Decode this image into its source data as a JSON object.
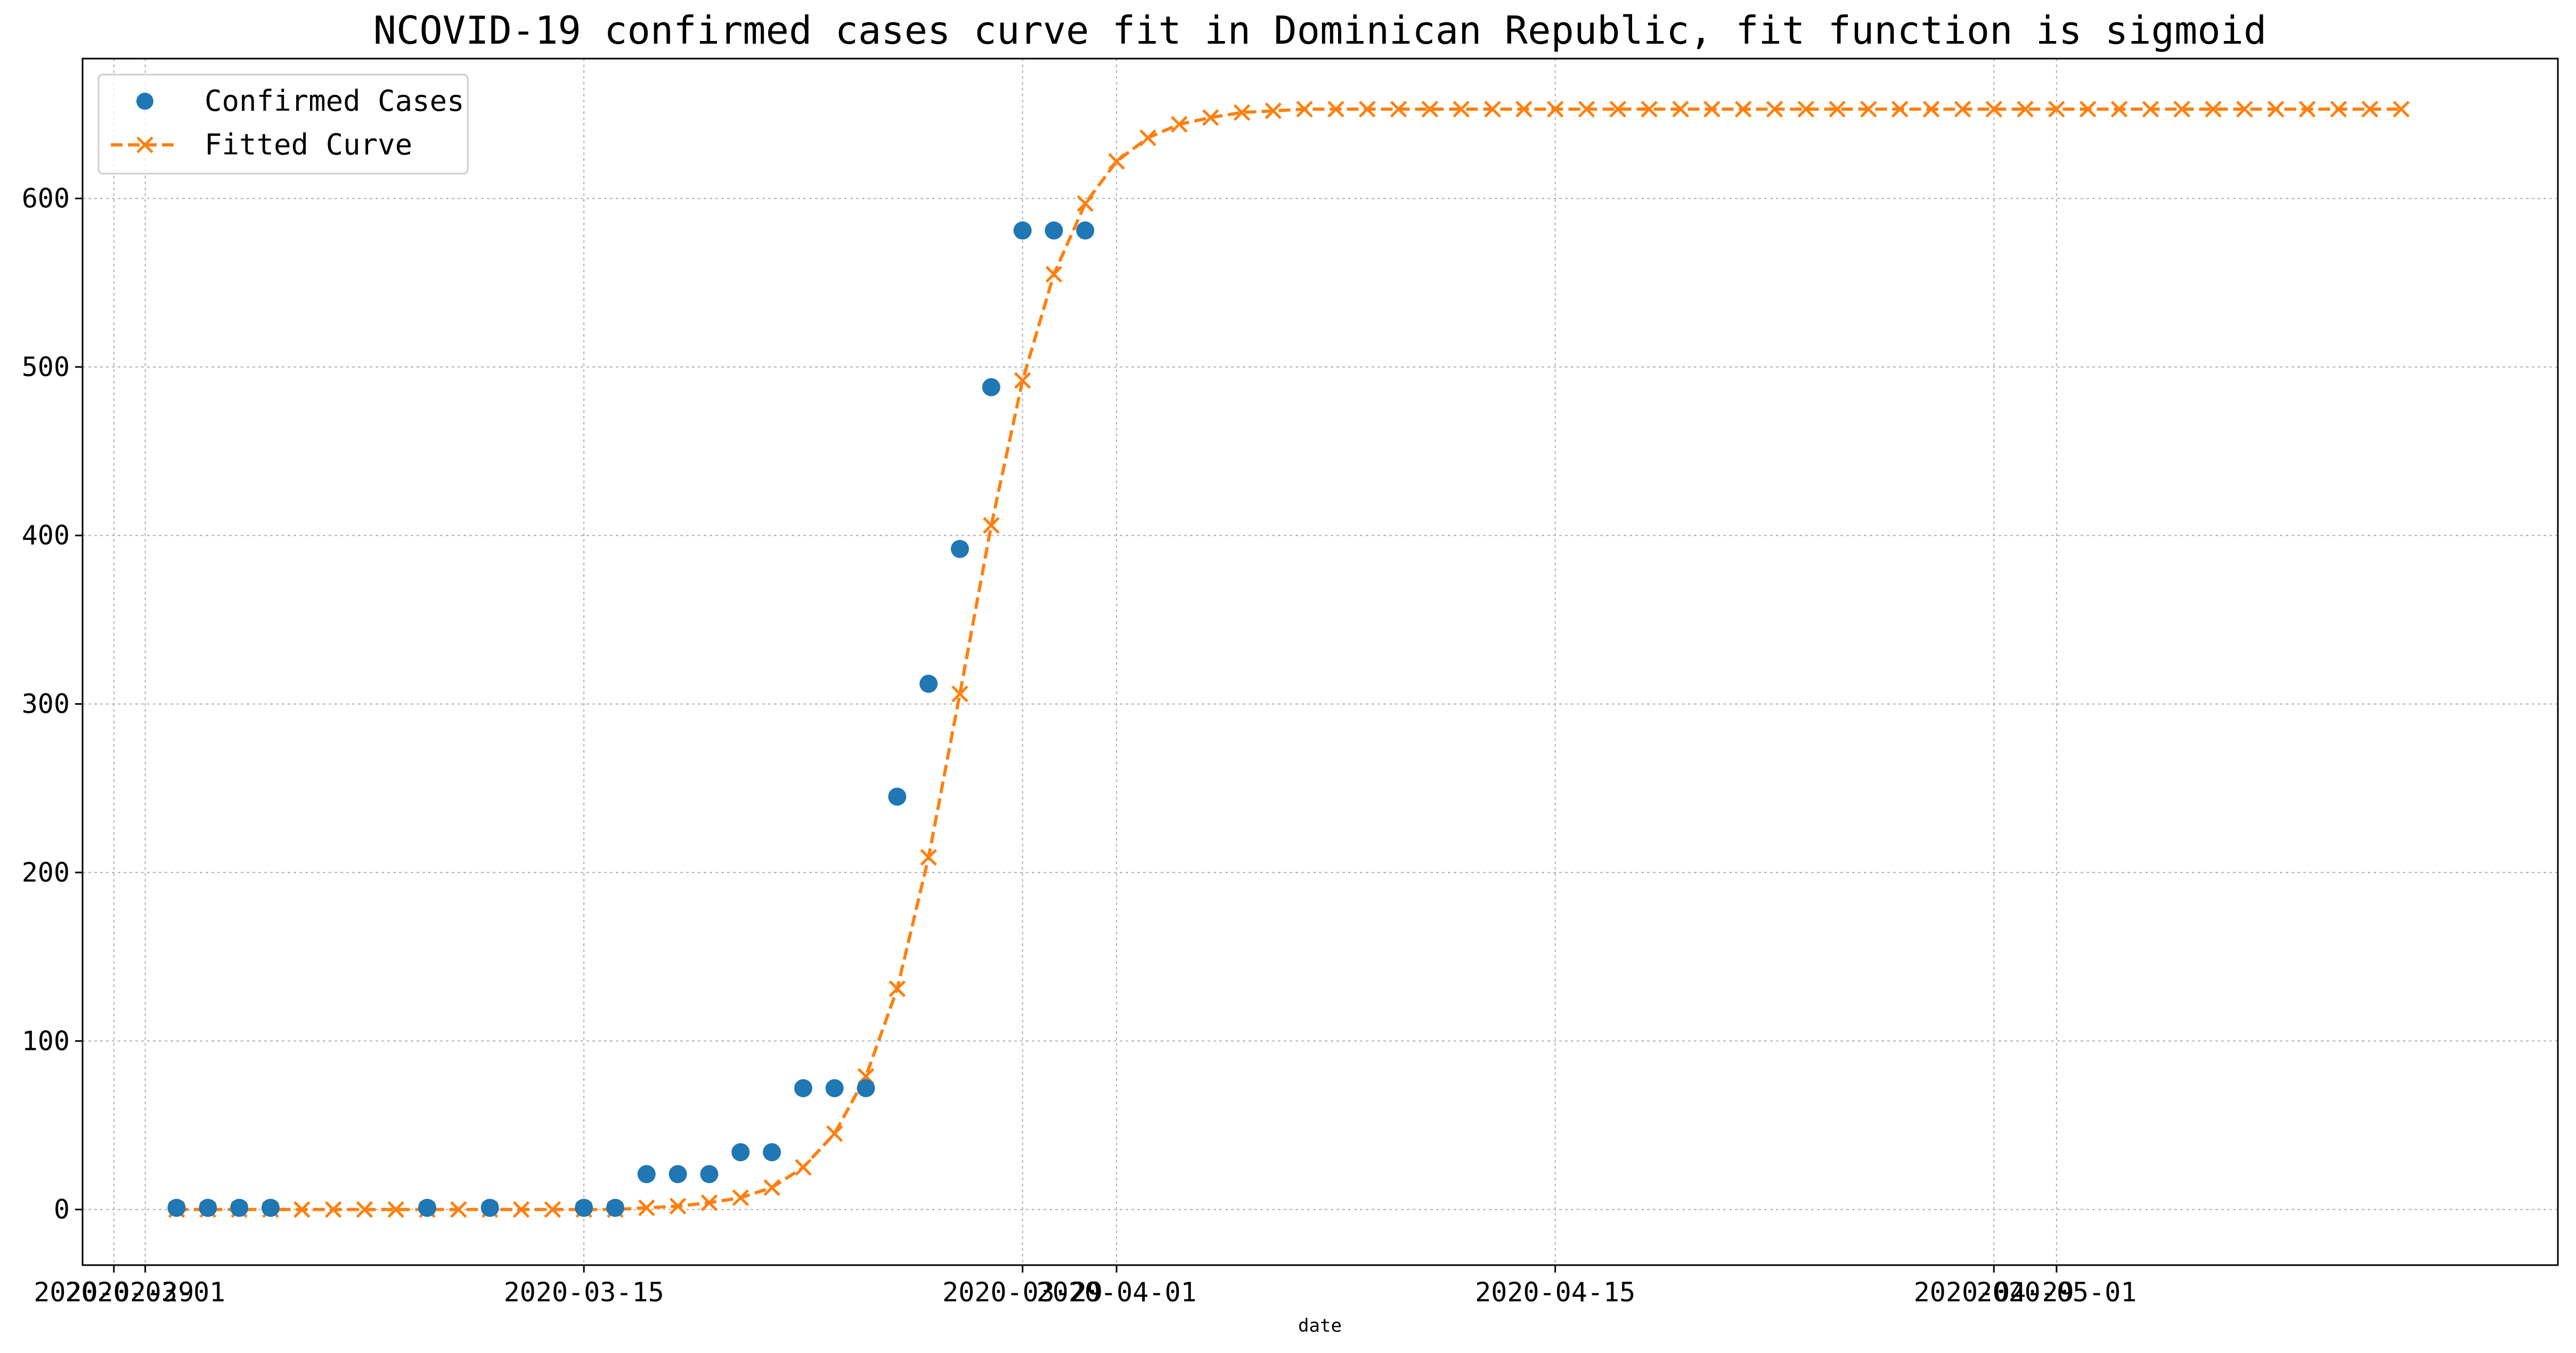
{
  "chart_data": {
    "type": "line",
    "title": "NCOVID-19 confirmed cases curve fit in Dominican Republic, fit function is sigmoid",
    "xlabel": "date",
    "ylabel": "",
    "x_tick_labels": [
      "2020-02-29",
      "2020-03-01",
      "2020-03-15",
      "2020-03-29",
      "2020-04-01",
      "2020-04-15",
      "2020-04-29",
      "2020-05-01"
    ],
    "x_tick_dates": [
      "2020-02-29",
      "2020-03-01",
      "2020-03-15",
      "2020-03-29",
      "2020-04-01",
      "2020-04-15",
      "2020-04-29",
      "2020-05-01"
    ],
    "y_ticks": [
      0,
      100,
      200,
      300,
      400,
      500,
      600
    ],
    "xlim": [
      "2020-02-28",
      "2020-05-17"
    ],
    "ylim": [
      -33,
      683
    ],
    "grid": true,
    "legend": {
      "placement": "top-left",
      "entries": [
        {
          "label": "Confirmed Cases",
          "series": "confirmed"
        },
        {
          "label": "Fitted Curve",
          "series": "fitted"
        }
      ]
    },
    "series": [
      {
        "id": "confirmed",
        "name": "Confirmed Cases",
        "style": "marker-circle",
        "color": "#1f77b4",
        "points": [
          [
            "2020-03-02",
            1
          ],
          [
            "2020-03-03",
            1
          ],
          [
            "2020-03-04",
            1
          ],
          [
            "2020-03-05",
            1
          ],
          [
            "2020-03-10",
            1
          ],
          [
            "2020-03-12",
            1
          ],
          [
            "2020-03-15",
            1
          ],
          [
            "2020-03-16",
            1
          ],
          [
            "2020-03-17",
            21
          ],
          [
            "2020-03-18",
            21
          ],
          [
            "2020-03-19",
            21
          ],
          [
            "2020-03-20",
            34
          ],
          [
            "2020-03-21",
            34
          ],
          [
            "2020-03-22",
            72
          ],
          [
            "2020-03-23",
            72
          ],
          [
            "2020-03-24",
            72
          ],
          [
            "2020-03-25",
            245
          ],
          [
            "2020-03-26",
            312
          ],
          [
            "2020-03-27",
            392
          ],
          [
            "2020-03-28",
            488
          ],
          [
            "2020-03-29",
            581
          ],
          [
            "2020-03-30",
            581
          ],
          [
            "2020-03-31",
            581
          ]
        ]
      },
      {
        "id": "fitted",
        "name": "Fitted Curve",
        "style": "dashed-line-x-marker",
        "color": "#ff7f0e",
        "start_date": "2020-03-02",
        "step_days": 1,
        "values": [
          0,
          0,
          0,
          0,
          0,
          0,
          0,
          0,
          0,
          0,
          0,
          0,
          0,
          0,
          0,
          1,
          2,
          4,
          7,
          13,
          25,
          45,
          79,
          131,
          209,
          306,
          406,
          492,
          555,
          597,
          622,
          636,
          644,
          648,
          651,
          652,
          653,
          653,
          653,
          653,
          653,
          653,
          653,
          653,
          653,
          653,
          653,
          653,
          653,
          653,
          653,
          653,
          653,
          653,
          653,
          653,
          653,
          653,
          653,
          653,
          653,
          653,
          653,
          653,
          653,
          653,
          653,
          653,
          653,
          653,
          653,
          653
        ]
      }
    ]
  }
}
